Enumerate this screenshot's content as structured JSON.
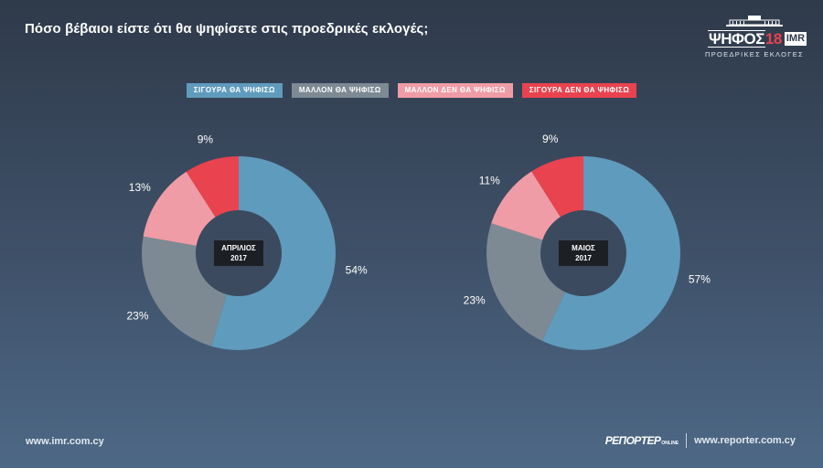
{
  "header": {
    "title": "Πόσο βέβαιοι είστε ότι θα ψηφίσετε στις προεδρικές εκλογές;"
  },
  "logo": {
    "brand_text": "ΨΗΦΟΣ",
    "brand_num": "18",
    "imr": "IMR",
    "subtitle": "ΠΡΟΕΔΡΙΚΕΣ ΕΚΛΟΓΕΣ"
  },
  "footer": {
    "left_url": "www.imr.com.cy",
    "reporter_brand": "ΡΕΠΟΡΤΕΡ",
    "reporter_suffix": "ONLINE",
    "right_url": "www.reporter.com.cy"
  },
  "chart_data": {
    "type": "pie",
    "variant": "donut",
    "legend_placement": "top-center",
    "categories": [
      {
        "name": "ΣΙΓΟΥΡΑ ΘΑ ΨΗΦΙΣΩ",
        "color": "#5f9bbd"
      },
      {
        "name": "ΜΑΛΛΟΝ ΘΑ ΨΗΦΙΣΩ",
        "color": "#7d8a94"
      },
      {
        "name": "ΜΑΛΛΟΝ ΔΕΝ ΘΑ ΨΗΦΙΣΩ",
        "color": "#f09ca6"
      },
      {
        "name": "ΣΙΓΟΥΡΑ ΔΕΝ ΘΑ ΨΗΦΙΣΩ",
        "color": "#e8434f"
      }
    ],
    "charts": [
      {
        "label_line1": "ΑΠΡΙΛΙΟΣ",
        "label_line2": "2017",
        "values": [
          54,
          23,
          13,
          9
        ],
        "value_labels": [
          "54%",
          "23%",
          "13%",
          "9%"
        ]
      },
      {
        "label_line1": "ΜΑΙΟΣ",
        "label_line2": "2017",
        "values": [
          57,
          23,
          11,
          9
        ],
        "value_labels": [
          "57%",
          "23%",
          "11%",
          "9%"
        ]
      }
    ]
  }
}
